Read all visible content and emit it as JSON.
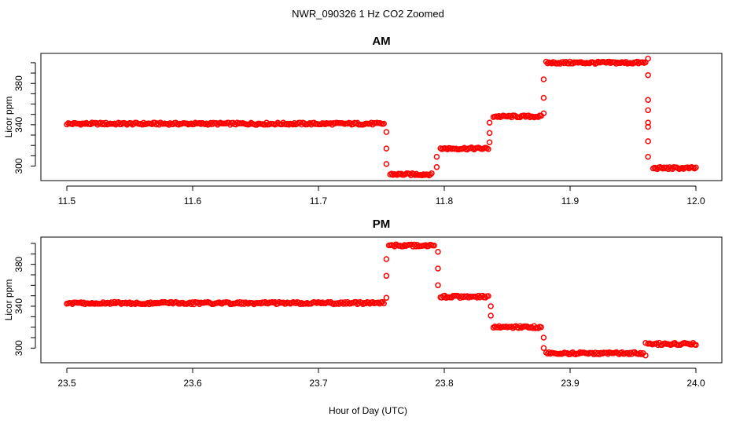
{
  "figure": {
    "title": "NWR_090326  1 Hz CO2 Zoomed",
    "xlabel": "Hour of Day (UTC)"
  },
  "colors": {
    "points": "#ff0000",
    "axis": "#000000"
  },
  "chart_data": [
    {
      "type": "scatter",
      "title": "AM",
      "xlabel": "Hour of Day (UTC)",
      "ylabel": "Licor ppm",
      "xlim": [
        11.5,
        12.0
      ],
      "ylim": [
        289,
        406
      ],
      "xticks": [
        11.5,
        11.6,
        11.7,
        11.8,
        11.9,
        12.0
      ],
      "xtick_labels": [
        "11.5",
        "11.6",
        "11.7",
        "11.8",
        "11.9",
        "12.0"
      ],
      "yticks": [
        300,
        340,
        380
      ],
      "ytick_labels": [
        "300",
        "340",
        "380"
      ],
      "grid": false,
      "legend": "none",
      "segments": [
        {
          "x_start": 11.5,
          "x_end": 11.752,
          "value": 341
        },
        {
          "x_start": 11.757,
          "x_end": 11.79,
          "value": 292
        },
        {
          "x_start": 11.797,
          "x_end": 11.835,
          "value": 317
        },
        {
          "x_start": 11.839,
          "x_end": 11.877,
          "value": 348
        },
        {
          "x_start": 11.881,
          "x_end": 11.96,
          "value": 400
        },
        {
          "x_start": 11.966,
          "x_end": 12.0,
          "value": 298
        }
      ],
      "transitions": [
        {
          "x": 11.754,
          "values": [
            333,
            317,
            302
          ]
        },
        {
          "x": 11.794,
          "values": [
            299,
            309
          ]
        },
        {
          "x": 11.836,
          "values": [
            323,
            332,
            342
          ]
        },
        {
          "x": 11.879,
          "values": [
            351,
            366,
            384
          ]
        },
        {
          "x": 11.962,
          "values": [
            404,
            388,
            364,
            354,
            342,
            338,
            324,
            309
          ]
        }
      ]
    },
    {
      "type": "scatter",
      "title": "PM",
      "xlabel": "Hour of Day (UTC)",
      "ylabel": "Licor ppm",
      "xlim": [
        23.5,
        24.0
      ],
      "ylim": [
        289,
        403
      ],
      "xticks": [
        23.5,
        23.6,
        23.7,
        23.8,
        23.9,
        24.0
      ],
      "xtick_labels": [
        "23.5",
        "23.6",
        "23.7",
        "23.8",
        "23.9",
        "24.0"
      ],
      "yticks": [
        300,
        340,
        380
      ],
      "ytick_labels": [
        "300",
        "340",
        "380"
      ],
      "grid": false,
      "legend": "none",
      "segments": [
        {
          "x_start": 23.5,
          "x_end": 23.752,
          "value": 343
        },
        {
          "x_start": 23.756,
          "x_end": 23.792,
          "value": 398
        },
        {
          "x_start": 23.797,
          "x_end": 23.835,
          "value": 349
        },
        {
          "x_start": 23.839,
          "x_end": 23.877,
          "value": 320
        },
        {
          "x_start": 23.881,
          "x_end": 23.958,
          "value": 295
        },
        {
          "x_start": 23.962,
          "x_end": 24.0,
          "value": 304
        }
      ],
      "transitions": [
        {
          "x": 23.754,
          "values": [
            348,
            369,
            385
          ]
        },
        {
          "x": 23.795,
          "values": [
            392,
            376,
            360
          ]
        },
        {
          "x": 23.837,
          "values": [
            340,
            331
          ]
        },
        {
          "x": 23.879,
          "values": [
            310,
            300
          ]
        },
        {
          "x": 23.96,
          "values": [
            293,
            305
          ]
        }
      ]
    }
  ]
}
